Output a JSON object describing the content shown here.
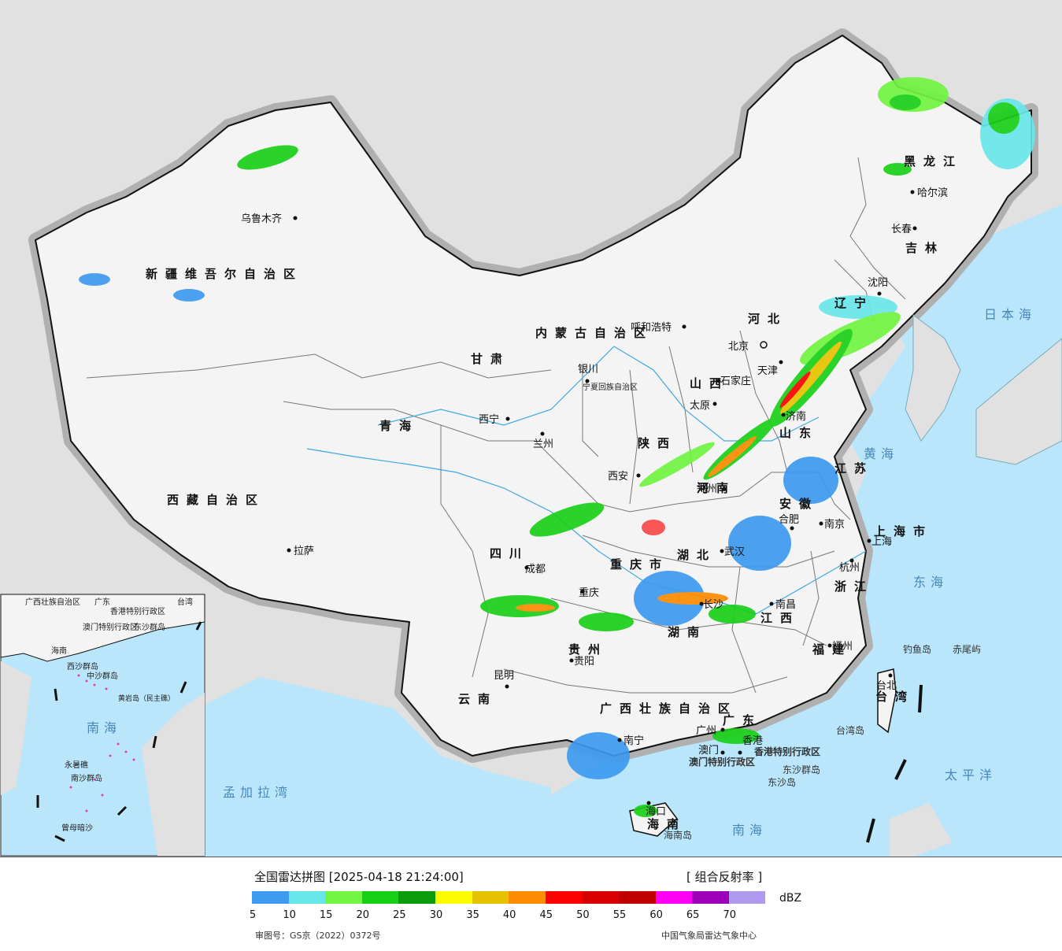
{
  "title": "全国雷达拼图 [2025-04-18 21:24:00]",
  "product": "[ 组合反射率 ]",
  "unit": "dBZ",
  "legend": {
    "colors": [
      "#3c9af0",
      "#69e6ea",
      "#72f542",
      "#18d018",
      "#0b9b0b",
      "#fcfc00",
      "#e6c200",
      "#fc8c00",
      "#fc0000",
      "#d80000",
      "#c00000",
      "#fc00f4",
      "#9b00b8",
      "#b09af0"
    ],
    "ticks": [
      "5",
      "10",
      "15",
      "20",
      "25",
      "30",
      "35",
      "40",
      "45",
      "50",
      "55",
      "60",
      "65",
      "70"
    ]
  },
  "footer_left": "审图号：GS京（2022）0372号",
  "footer_right": "中国气象局雷达气象中心",
  "provinces": [
    "新疆维吾尔自治区",
    "西藏自治区",
    "青海",
    "甘肃",
    "内蒙古自治区",
    "黑龙江",
    "吉林",
    "辽宁",
    "河北",
    "山西",
    "陕西",
    "四川",
    "重庆市",
    "湖北",
    "湖南",
    "贵州",
    "云南",
    "广西壮族自治区",
    "广东",
    "江西",
    "福建",
    "浙江",
    "安徽",
    "江苏",
    "山东",
    "河南",
    "海南",
    "台湾",
    "宁夏回族自治区",
    "上海市"
  ],
  "cities": [
    "乌鲁木齐",
    "拉萨",
    "西宁",
    "兰州",
    "银川",
    "呼和浩特",
    "北京",
    "天津",
    "石家庄",
    "太原",
    "西安",
    "济南",
    "郑州",
    "成都",
    "重庆",
    "武汉",
    "合肥",
    "南京",
    "上海",
    "杭州",
    "南昌",
    "长沙",
    "贵阳",
    "昆明",
    "南宁",
    "广州",
    "香港",
    "澳门",
    "福州",
    "台北",
    "哈尔滨",
    "长春",
    "沈阳",
    "海口"
  ],
  "seas": [
    "日本海",
    "黄海",
    "东海",
    "太平洋",
    "南海",
    "孟加拉湾"
  ],
  "islands": [
    "钓鱼岛",
    "赤尾屿",
    "东沙群岛",
    "东沙岛",
    "海南岛",
    "香港特别行政区",
    "澳门特别行政区",
    "台湾岛"
  ],
  "inset": {
    "labels": [
      "广西壮族自治区",
      "广东",
      "台湾",
      "香港特别行政区",
      "澳门特别行政区",
      "东沙群岛",
      "海南",
      "西沙群岛",
      "中沙群岛",
      "黄岩岛（民主礁）",
      "南海",
      "永暑礁",
      "南沙群岛",
      "曾母暗沙"
    ]
  }
}
